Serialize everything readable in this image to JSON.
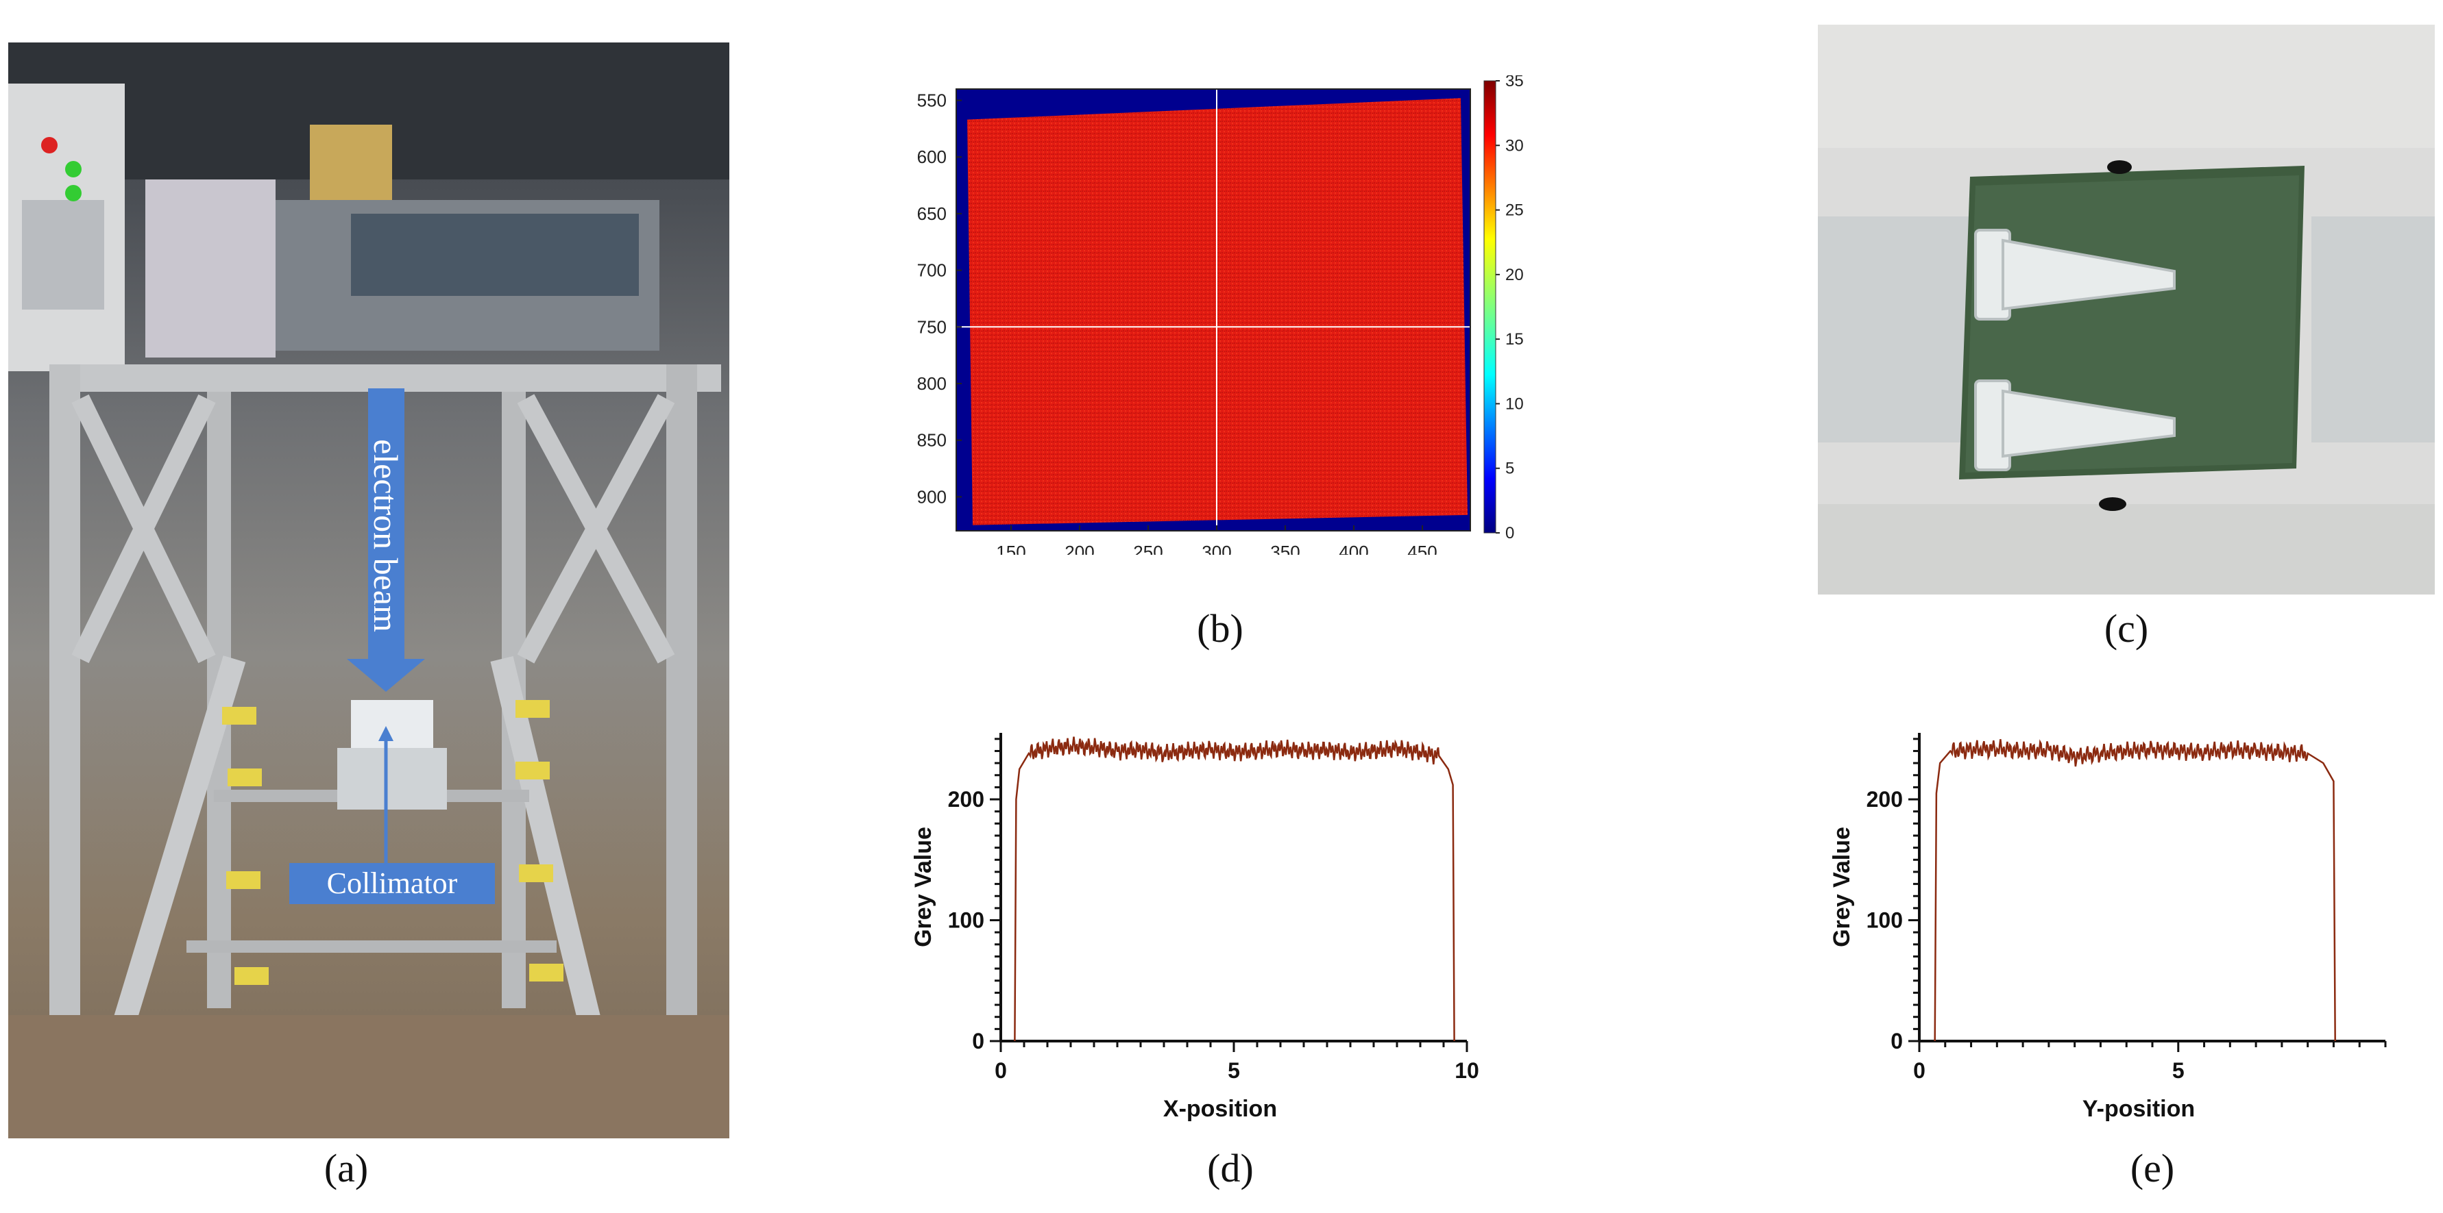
{
  "panel_a": {
    "caption": "(a)",
    "label_beam": "electron beam",
    "label_collimator": "Collimator"
  },
  "panel_b": {
    "caption": "(b)",
    "heatmap": {
      "type": "heatmap",
      "x_ticks": [
        "150",
        "200",
        "250",
        "300",
        "350",
        "400",
        "450"
      ],
      "y_ticks": [
        "550",
        "600",
        "650",
        "700",
        "750",
        "800",
        "850",
        "900"
      ],
      "colorbar_ticks": [
        "0",
        "5",
        "10",
        "15",
        "20",
        "25",
        "30",
        "35"
      ],
      "xlim": [
        110,
        485
      ],
      "ylim": [
        540,
        930
      ],
      "crosshair": {
        "x": 300,
        "y": 750
      },
      "colormap": "jet",
      "field_value": 32
    }
  },
  "panel_c": {
    "caption": "(c)"
  },
  "chart_data": [
    {
      "type": "line",
      "id": "d",
      "caption": "(d)",
      "xlabel": "X-position",
      "ylabel": "Grey Value",
      "xlim": [
        0,
        10
      ],
      "ylim": [
        0,
        255
      ],
      "x_ticks": [
        "0",
        "5",
        "10"
      ],
      "y_ticks": [
        "0",
        "100",
        "200"
      ],
      "color": "#8b2a10",
      "x": [
        0.3,
        0.33,
        0.4,
        0.6,
        1.0,
        1.5,
        2.0,
        2.5,
        3.0,
        3.5,
        4.0,
        4.5,
        5.0,
        5.5,
        6.0,
        6.5,
        7.0,
        7.5,
        8.0,
        8.5,
        9.0,
        9.4,
        9.6,
        9.7,
        9.73
      ],
      "y": [
        0,
        200,
        225,
        238,
        242,
        244,
        243,
        240,
        241,
        238,
        240,
        241,
        239,
        240,
        242,
        240,
        241,
        239,
        240,
        242,
        239,
        236,
        225,
        212,
        0
      ]
    },
    {
      "type": "line",
      "id": "e",
      "caption": "(e)",
      "xlabel": "Y-position",
      "ylabel": "Grey Value",
      "xlim": [
        0,
        9
      ],
      "ylim": [
        0,
        255
      ],
      "x_ticks": [
        "0",
        "5"
      ],
      "y_ticks": [
        "0",
        "100",
        "200"
      ],
      "color": "#8b2a10",
      "x": [
        0.3,
        0.33,
        0.4,
        0.6,
        1.0,
        1.5,
        2.0,
        2.5,
        3.0,
        3.5,
        4.0,
        4.5,
        5.0,
        5.5,
        6.0,
        6.5,
        7.0,
        7.5,
        7.8,
        8.0,
        8.03
      ],
      "y": [
        0,
        205,
        230,
        240,
        241,
        242,
        240,
        241,
        235,
        238,
        240,
        241,
        240,
        239,
        241,
        240,
        239,
        238,
        230,
        215,
        0
      ]
    }
  ]
}
